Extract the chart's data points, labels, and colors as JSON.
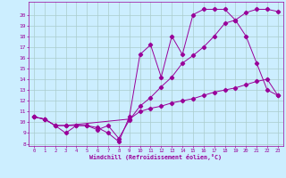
{
  "xlabel": "Windchill (Refroidissement éolien,°C)",
  "bg_color": "#cceeff",
  "grid_color": "#aacccc",
  "line_color": "#990099",
  "xlim": [
    -0.5,
    23.5
  ],
  "ylim": [
    7.8,
    21.2
  ],
  "xticks": [
    0,
    1,
    2,
    3,
    4,
    5,
    6,
    7,
    8,
    9,
    10,
    11,
    12,
    13,
    14,
    15,
    16,
    17,
    18,
    19,
    20,
    21,
    22,
    23
  ],
  "yticks": [
    8,
    9,
    10,
    11,
    12,
    13,
    14,
    15,
    16,
    17,
    18,
    19,
    20
  ],
  "line1_x": [
    0,
    1,
    2,
    3,
    4,
    5,
    6,
    7,
    8,
    9,
    10,
    11,
    12,
    13,
    14,
    15,
    16,
    17,
    18,
    19,
    20,
    21,
    22,
    23
  ],
  "line1_y": [
    10.5,
    10.3,
    9.7,
    9.0,
    9.7,
    9.7,
    9.5,
    9.0,
    8.2,
    10.5,
    16.3,
    17.2,
    14.2,
    18.0,
    16.3,
    20.0,
    20.5,
    20.5,
    20.5,
    19.5,
    18.0,
    15.5,
    13.0,
    12.5
  ],
  "line2_x": [
    0,
    1,
    2,
    3,
    4,
    5,
    6,
    7,
    8,
    9,
    10,
    11,
    12,
    13,
    14,
    15,
    16,
    17,
    18,
    19,
    20,
    21,
    22,
    23
  ],
  "line2_y": [
    10.5,
    10.3,
    9.7,
    9.7,
    9.7,
    9.7,
    9.3,
    9.7,
    8.5,
    10.2,
    11.5,
    12.3,
    13.3,
    14.2,
    15.5,
    16.2,
    17.0,
    18.0,
    19.2,
    19.5,
    20.2,
    20.5,
    20.5,
    20.3
  ],
  "line3_x": [
    0,
    1,
    2,
    3,
    9,
    10,
    11,
    12,
    13,
    14,
    15,
    16,
    17,
    18,
    19,
    20,
    21,
    22,
    23
  ],
  "line3_y": [
    10.5,
    10.3,
    9.7,
    9.7,
    10.3,
    11.0,
    11.3,
    11.5,
    11.8,
    12.0,
    12.2,
    12.5,
    12.8,
    13.0,
    13.2,
    13.5,
    13.8,
    14.0,
    12.5
  ]
}
